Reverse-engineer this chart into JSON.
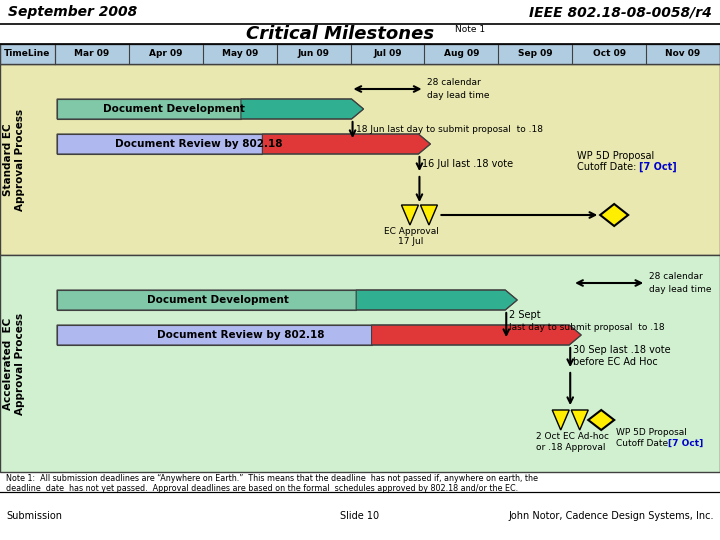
{
  "title_left": "September 2008",
  "title_right": "IEEE 802.18-08-0058/r4",
  "main_title": "Critical Milestones",
  "note_sup": "Note 1",
  "months": [
    "Mar 09",
    "Apr 09",
    "May 09",
    "Jun 09",
    "Jul 09",
    "Aug 09",
    "Sep 09",
    "Oct 09",
    "Nov 09"
  ],
  "timeline_label": "TimeLine",
  "section1_label": "Standard EC\nApproval Process",
  "section2_label": "Accelerated  EC\nApproval Process",
  "bg_section1": "#e8e8b0",
  "bg_section2": "#d0f0d0",
  "header_bg": "#b0cce0",
  "border_color": "#404040",
  "footer_note": "Note 1:  All submission deadlines are “Anywhere on Earth.”  This means that the deadline  has not passed if, anywhere on earth, the\ndeadline  date  has not yet passed.  Approval deadlines are based on the formal  schedules approved by 802.18 and/or the EC.",
  "footer_left": "Submission",
  "footer_center": "Slide 10",
  "footer_right": "John Notor, Cadence Design Systems, Inc."
}
